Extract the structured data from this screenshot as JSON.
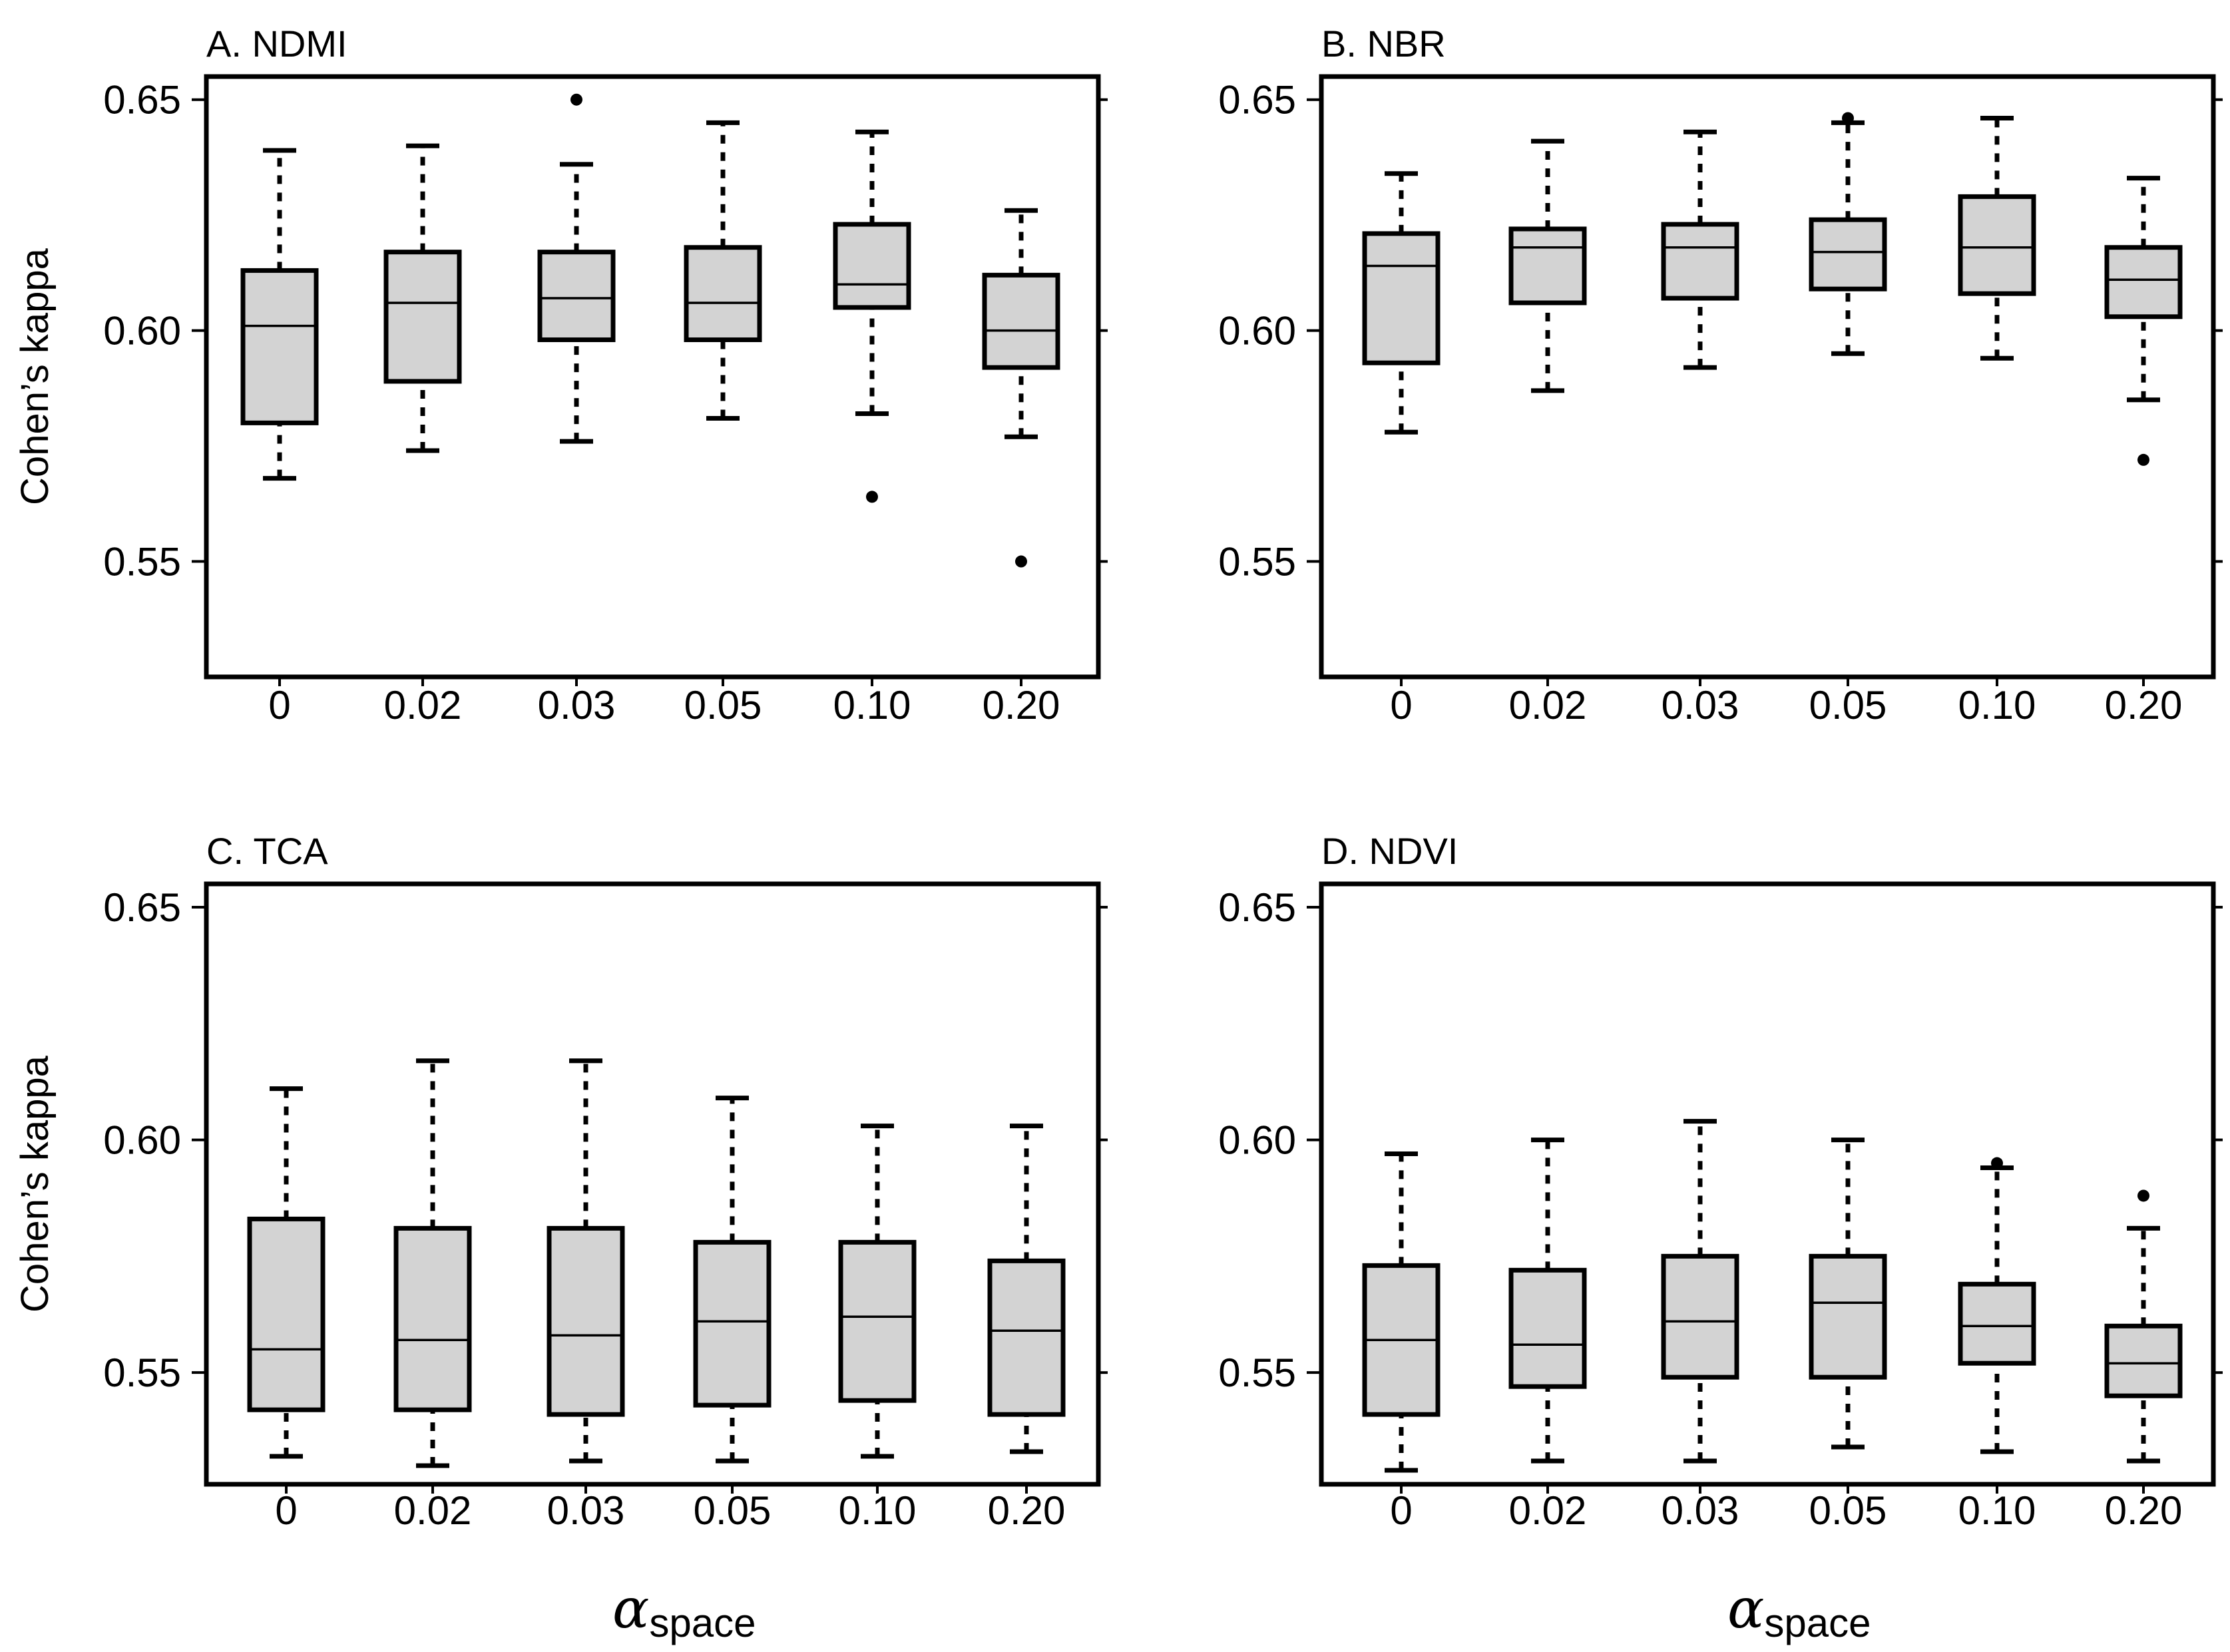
{
  "chart_data": [
    {
      "type": "boxplot",
      "title": "A. NDMI",
      "ylabel": "Cohen’s kappa",
      "xlabel": "",
      "ylim": [
        0.525,
        0.655
      ],
      "yticks": [
        "0.55",
        "0.60",
        "0.65"
      ],
      "categories": [
        "0",
        "0.02",
        "0.03",
        "0.05",
        "0.10",
        "0.20"
      ],
      "boxes": [
        {
          "low": 0.568,
          "q1": 0.58,
          "median": 0.601,
          "q3": 0.613,
          "high": 0.639,
          "outliers": []
        },
        {
          "low": 0.574,
          "q1": 0.589,
          "median": 0.606,
          "q3": 0.617,
          "high": 0.64,
          "outliers": []
        },
        {
          "low": 0.576,
          "q1": 0.598,
          "median": 0.607,
          "q3": 0.617,
          "high": 0.636,
          "outliers": [
            0.65
          ]
        },
        {
          "low": 0.581,
          "q1": 0.598,
          "median": 0.606,
          "q3": 0.618,
          "high": 0.645,
          "outliers": []
        },
        {
          "low": 0.582,
          "q1": 0.605,
          "median": 0.61,
          "q3": 0.623,
          "high": 0.643,
          "outliers": [
            0.564
          ]
        },
        {
          "low": 0.577,
          "q1": 0.592,
          "median": 0.6,
          "q3": 0.612,
          "high": 0.626,
          "outliers": [
            0.55
          ]
        }
      ]
    },
    {
      "type": "boxplot",
      "title": "B. NBR",
      "ylabel": "",
      "xlabel": "",
      "ylim": [
        0.525,
        0.655
      ],
      "yticks": [
        "0.55",
        "0.60",
        "0.65"
      ],
      "categories": [
        "0",
        "0.02",
        "0.03",
        "0.05",
        "0.10",
        "0.20"
      ],
      "boxes": [
        {
          "low": 0.578,
          "q1": 0.593,
          "median": 0.614,
          "q3": 0.621,
          "high": 0.634,
          "outliers": []
        },
        {
          "low": 0.587,
          "q1": 0.606,
          "median": 0.618,
          "q3": 0.622,
          "high": 0.641,
          "outliers": []
        },
        {
          "low": 0.592,
          "q1": 0.607,
          "median": 0.618,
          "q3": 0.623,
          "high": 0.643,
          "outliers": []
        },
        {
          "low": 0.595,
          "q1": 0.609,
          "median": 0.617,
          "q3": 0.624,
          "high": 0.645,
          "outliers": [
            0.646
          ]
        },
        {
          "low": 0.594,
          "q1": 0.608,
          "median": 0.618,
          "q3": 0.629,
          "high": 0.646,
          "outliers": []
        },
        {
          "low": 0.585,
          "q1": 0.603,
          "median": 0.611,
          "q3": 0.618,
          "high": 0.633,
          "outliers": [
            0.572
          ]
        }
      ]
    },
    {
      "type": "boxplot",
      "title": "C. TCA",
      "ylabel": "Cohen’s kappa",
      "xlabel": "α",
      "xlabel_sub": "space",
      "ylim": [
        0.526,
        0.655
      ],
      "yticks": [
        "0.55",
        "0.60",
        "0.65"
      ],
      "categories": [
        "0",
        "0.02",
        "0.03",
        "0.05",
        "0.10",
        "0.20"
      ],
      "boxes": [
        {
          "low": 0.532,
          "q1": 0.542,
          "median": 0.555,
          "q3": 0.583,
          "high": 0.611,
          "outliers": []
        },
        {
          "low": 0.53,
          "q1": 0.542,
          "median": 0.557,
          "q3": 0.581,
          "high": 0.617,
          "outliers": []
        },
        {
          "low": 0.531,
          "q1": 0.541,
          "median": 0.558,
          "q3": 0.581,
          "high": 0.617,
          "outliers": []
        },
        {
          "low": 0.531,
          "q1": 0.543,
          "median": 0.561,
          "q3": 0.578,
          "high": 0.609,
          "outliers": []
        },
        {
          "low": 0.532,
          "q1": 0.544,
          "median": 0.562,
          "q3": 0.578,
          "high": 0.603,
          "outliers": []
        },
        {
          "low": 0.533,
          "q1": 0.541,
          "median": 0.559,
          "q3": 0.574,
          "high": 0.603,
          "outliers": []
        }
      ]
    },
    {
      "type": "boxplot",
      "title": "D. NDVI",
      "ylabel": "",
      "xlabel": "α",
      "xlabel_sub": "space",
      "ylim": [
        0.526,
        0.655
      ],
      "yticks": [
        "0.55",
        "0.60",
        "0.65"
      ],
      "categories": [
        "0",
        "0.02",
        "0.03",
        "0.05",
        "0.10",
        "0.20"
      ],
      "boxes": [
        {
          "low": 0.529,
          "q1": 0.541,
          "median": 0.557,
          "q3": 0.573,
          "high": 0.597,
          "outliers": []
        },
        {
          "low": 0.531,
          "q1": 0.547,
          "median": 0.556,
          "q3": 0.572,
          "high": 0.6,
          "outliers": []
        },
        {
          "low": 0.531,
          "q1": 0.549,
          "median": 0.561,
          "q3": 0.575,
          "high": 0.604,
          "outliers": []
        },
        {
          "low": 0.534,
          "q1": 0.549,
          "median": 0.565,
          "q3": 0.575,
          "high": 0.6,
          "outliers": []
        },
        {
          "low": 0.533,
          "q1": 0.552,
          "median": 0.56,
          "q3": 0.569,
          "high": 0.594,
          "outliers": [
            0.595
          ]
        },
        {
          "low": 0.531,
          "q1": 0.545,
          "median": 0.552,
          "q3": 0.56,
          "high": 0.581,
          "outliers": [
            0.588
          ]
        }
      ]
    }
  ]
}
